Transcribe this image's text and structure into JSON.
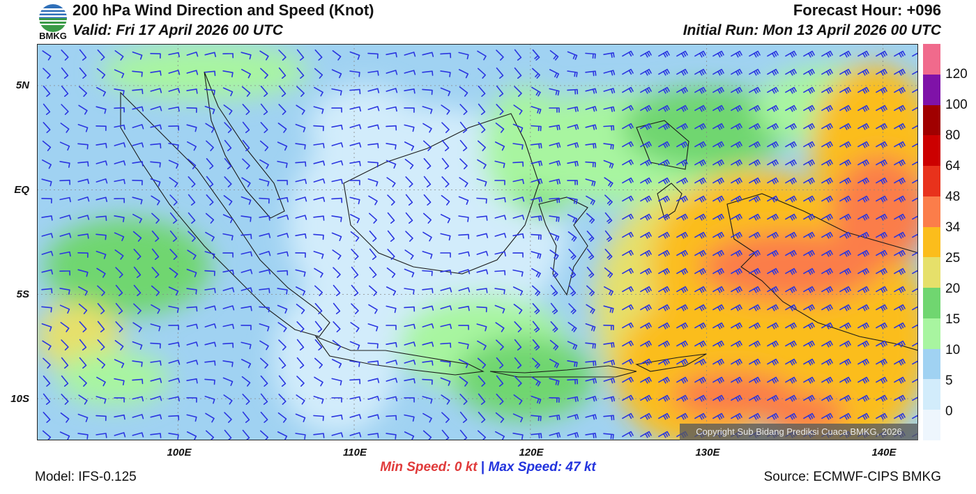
{
  "header": {
    "title": "200 hPa Wind Direction and Speed (Knot)",
    "valid": "Valid: Fri 17 April 2026 00 UTC",
    "forecast_hour": "Forecast Hour: +096",
    "initial_run": "Initial Run: Mon 13 April 2026 00 UTC"
  },
  "logo": {
    "text": "BMKG",
    "icon": "bmkg-logo-icon"
  },
  "map": {
    "lat_labels": [
      "5N",
      "EQ",
      "5S",
      "10S"
    ],
    "lat_values": [
      5,
      0,
      -5,
      -10
    ],
    "lon_labels": [
      "100E",
      "110E",
      "120E",
      "130E",
      "140E"
    ],
    "lon_values": [
      100,
      110,
      120,
      130,
      140
    ],
    "lon_range": [
      92,
      142
    ],
    "lat_range": [
      -12,
      7
    ]
  },
  "colorbar": {
    "labels": [
      "120",
      "100",
      "80",
      "64",
      "48",
      "34",
      "25",
      "20",
      "15",
      "10",
      "5",
      "0"
    ],
    "colors": [
      "#f06a8c",
      "#7f12a8",
      "#a00000",
      "#cc0000",
      "#e8321c",
      "#fb7d4a",
      "#fbbd1c",
      "#e6e06a",
      "#70d670",
      "#a8f5a0",
      "#a0d2f2",
      "#d2ecfb",
      "#eef6fd"
    ]
  },
  "speed": {
    "min_label": "Min Speed:",
    "min_value": "0 kt",
    "separator": "|",
    "max_label": "Max Speed:",
    "max_value": "47 kt"
  },
  "footer": {
    "model": "Model: IFS-0.125",
    "source": "Source: ECMWF-CIPS BMKG",
    "copyright": "Copyright Sub Bidang Prediksi Cuaca BMKG, 2026"
  }
}
